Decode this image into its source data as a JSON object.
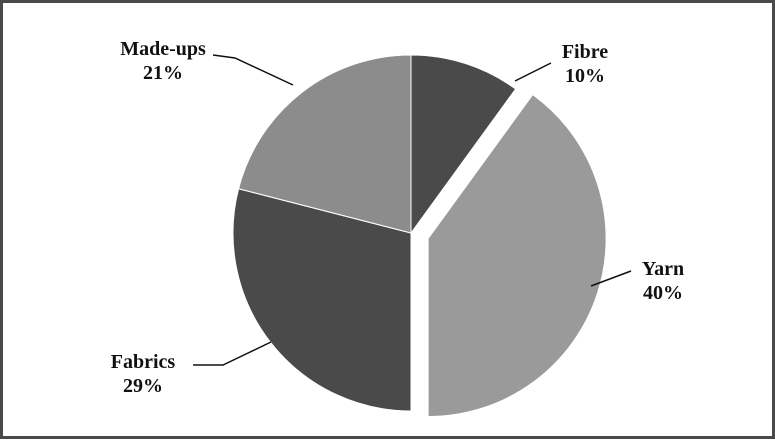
{
  "chart_data": {
    "type": "pie",
    "title": "",
    "start_angle_deg": 0,
    "direction": "clockwise",
    "slices": [
      {
        "label": "Fibre",
        "value": 10,
        "value_text": "10%",
        "color": "#4a4a4a"
      },
      {
        "label": "Yarn",
        "value": 40,
        "value_text": "40%",
        "color": "#9a9a9a",
        "exploded": true
      },
      {
        "label": "Fabrics",
        "value": 29,
        "value_text": "29%",
        "color": "#4a4a4a"
      },
      {
        "label": "Made-ups",
        "value": 21,
        "value_text": "21%",
        "color": "#8c8c8c"
      }
    ],
    "labels_outside": true,
    "leader_lines": true,
    "legend": "none"
  }
}
